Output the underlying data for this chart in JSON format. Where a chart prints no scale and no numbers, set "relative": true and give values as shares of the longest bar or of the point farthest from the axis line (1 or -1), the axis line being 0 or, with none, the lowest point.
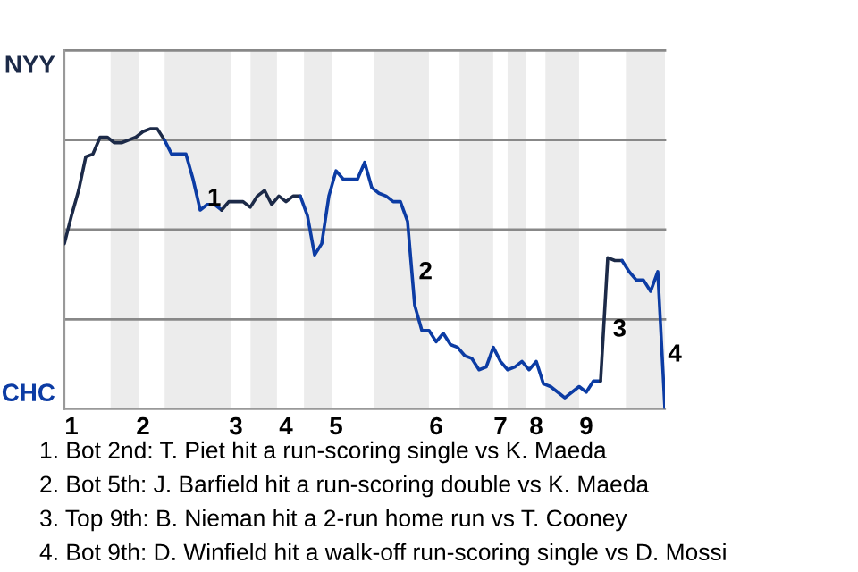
{
  "chart_data": {
    "type": "line",
    "relative": true,
    "categories": [
      null,
      "1",
      null,
      null,
      null,
      null,
      null,
      null,
      null,
      null,
      null,
      "2",
      null,
      null,
      null,
      null,
      null,
      null,
      null,
      null,
      null,
      null,
      null,
      null,
      "3",
      null,
      null,
      null,
      null,
      null,
      null,
      "4",
      null,
      null,
      null,
      null,
      null,
      null,
      "5",
      null,
      null,
      null,
      null,
      null,
      null,
      null,
      null,
      null,
      null,
      null,
      null,
      null,
      "6",
      null,
      null,
      null,
      null,
      null,
      null,
      null,
      null,
      "7",
      null,
      null,
      null,
      null,
      "8",
      null,
      null,
      null,
      null,
      null,
      null,
      "9",
      null,
      null,
      null,
      null,
      null,
      null,
      null,
      null,
      null,
      null,
      null
    ],
    "grid": "y",
    "marker": "none",
    "line_style": "solid",
    "series": [
      {
        "color": "#1c2a48",
        "values": [
          0.59,
          0.69,
          0.78,
          0.9,
          0.91,
          0.97,
          0.97,
          0.95,
          0.95,
          0.96,
          0.97,
          0.99,
          1,
          1,
          0.96,
          null,
          null,
          null,
          null,
          null,
          null,
          null,
          null,
          null,
          null,
          null,
          null,
          null,
          null,
          null,
          null,
          null,
          null,
          null,
          null,
          null,
          null,
          null,
          null,
          null,
          null,
          null,
          null,
          null,
          null,
          null,
          null,
          null,
          null,
          null,
          null,
          null,
          null,
          null,
          null,
          null,
          null,
          null,
          null,
          null,
          null,
          null,
          null,
          null,
          null,
          null,
          null,
          null,
          null,
          null,
          null,
          null,
          null,
          null,
          null,
          null,
          null,
          null,
          null,
          null,
          null,
          null,
          null,
          null,
          null
        ]
      },
      {
        "color": "#0c3ca4",
        "values": [
          null,
          null,
          null,
          null,
          null,
          null,
          null,
          null,
          null,
          null,
          null,
          null,
          null,
          null,
          0.96,
          0.91,
          0.91,
          0.91,
          0.82,
          0.71,
          0.73,
          0.73,
          0.71,
          null,
          null,
          null,
          null,
          null,
          null,
          null,
          null,
          null,
          null,
          null,
          null,
          null,
          null,
          null,
          null,
          null,
          null,
          null,
          null,
          null,
          null,
          null,
          null,
          null,
          null,
          null,
          null,
          null,
          null,
          null,
          null,
          null,
          null,
          null,
          null,
          null,
          null,
          null,
          null,
          null,
          null,
          null,
          null,
          null,
          null,
          null,
          null,
          null,
          null,
          null,
          null,
          null,
          null,
          null,
          null,
          null,
          null,
          null,
          null,
          null,
          null
        ]
      },
      {
        "color": "#1c2a48",
        "values": [
          null,
          null,
          null,
          null,
          null,
          null,
          null,
          null,
          null,
          null,
          null,
          null,
          null,
          null,
          null,
          null,
          null,
          null,
          null,
          null,
          null,
          null,
          0.71,
          0.74,
          0.74,
          0.74,
          0.72,
          0.76,
          0.78,
          0.73,
          0.76,
          0.74,
          0.76,
          0.76,
          null,
          null,
          null,
          null,
          null,
          null,
          null,
          null,
          null,
          null,
          null,
          null,
          null,
          null,
          null,
          null,
          null,
          null,
          null,
          null,
          null,
          null,
          null,
          null,
          null,
          null,
          null,
          null,
          null,
          null,
          null,
          null,
          null,
          null,
          null,
          null,
          null,
          null,
          null,
          null,
          null,
          null,
          null,
          null,
          null,
          null,
          null,
          null,
          null,
          null,
          null
        ]
      },
      {
        "color": "#0c3ca4",
        "values": [
          null,
          null,
          null,
          null,
          null,
          null,
          null,
          null,
          null,
          null,
          null,
          null,
          null,
          null,
          null,
          null,
          null,
          null,
          null,
          null,
          null,
          null,
          null,
          null,
          null,
          null,
          null,
          null,
          null,
          null,
          null,
          null,
          null,
          0.76,
          0.69,
          0.55,
          0.59,
          0.76,
          0.85,
          0.82,
          0.82,
          0.82,
          0.88,
          0.79,
          0.77,
          0.76,
          0.74,
          0.74,
          0.67,
          0.37,
          0.28,
          0.28,
          0.24,
          0.27,
          0.23,
          0.22,
          0.19,
          0.18,
          0.14,
          0.15,
          0.22,
          0.17,
          0.14,
          0.15,
          0.17,
          0.14,
          0.17,
          0.09,
          0.08,
          0.06,
          0.04,
          0.06,
          0.08,
          0.06,
          0.1,
          0.1,
          null,
          null,
          null,
          null,
          null,
          null,
          null,
          null,
          null
        ]
      },
      {
        "color": "#1c2a48",
        "values": [
          null,
          null,
          null,
          null,
          null,
          null,
          null,
          null,
          null,
          null,
          null,
          null,
          null,
          null,
          null,
          null,
          null,
          null,
          null,
          null,
          null,
          null,
          null,
          null,
          null,
          null,
          null,
          null,
          null,
          null,
          null,
          null,
          null,
          null,
          null,
          null,
          null,
          null,
          null,
          null,
          null,
          null,
          null,
          null,
          null,
          null,
          null,
          null,
          null,
          null,
          null,
          null,
          null,
          null,
          null,
          null,
          null,
          null,
          null,
          null,
          null,
          null,
          null,
          null,
          null,
          null,
          null,
          null,
          null,
          null,
          null,
          null,
          null,
          null,
          null,
          0.1,
          0.54,
          0.53,
          0.53,
          null,
          null,
          null,
          null,
          null,
          null
        ]
      },
      {
        "color": "#0c3ca4",
        "values": [
          null,
          null,
          null,
          null,
          null,
          null,
          null,
          null,
          null,
          null,
          null,
          null,
          null,
          null,
          null,
          null,
          null,
          null,
          null,
          null,
          null,
          null,
          null,
          null,
          null,
          null,
          null,
          null,
          null,
          null,
          null,
          null,
          null,
          null,
          null,
          null,
          null,
          null,
          null,
          null,
          null,
          null,
          null,
          null,
          null,
          null,
          null,
          null,
          null,
          null,
          null,
          null,
          null,
          null,
          null,
          null,
          null,
          null,
          null,
          null,
          null,
          null,
          null,
          null,
          null,
          null,
          null,
          null,
          null,
          null,
          null,
          null,
          null,
          null,
          null,
          null,
          null,
          null,
          0.53,
          0.49,
          0.46,
          0.46,
          0.42,
          0.49,
          0
        ]
      }
    ],
    "annotations": [
      "NYY",
      "CHC",
      "1",
      "2",
      "3",
      "4",
      "1. Bot 2nd: T. Piet hit a run-scoring single vs K. Maeda",
      "2. Bot 5th: J. Barfield hit a run-scoring double vs K. Maeda",
      "3. Top 9th: B. Nieman hit a 2-run home run vs T. Cooney",
      "4. Bot 9th: D. Winfield hit a walk-off run-scoring single vs D. Mossi"
    ]
  }
}
